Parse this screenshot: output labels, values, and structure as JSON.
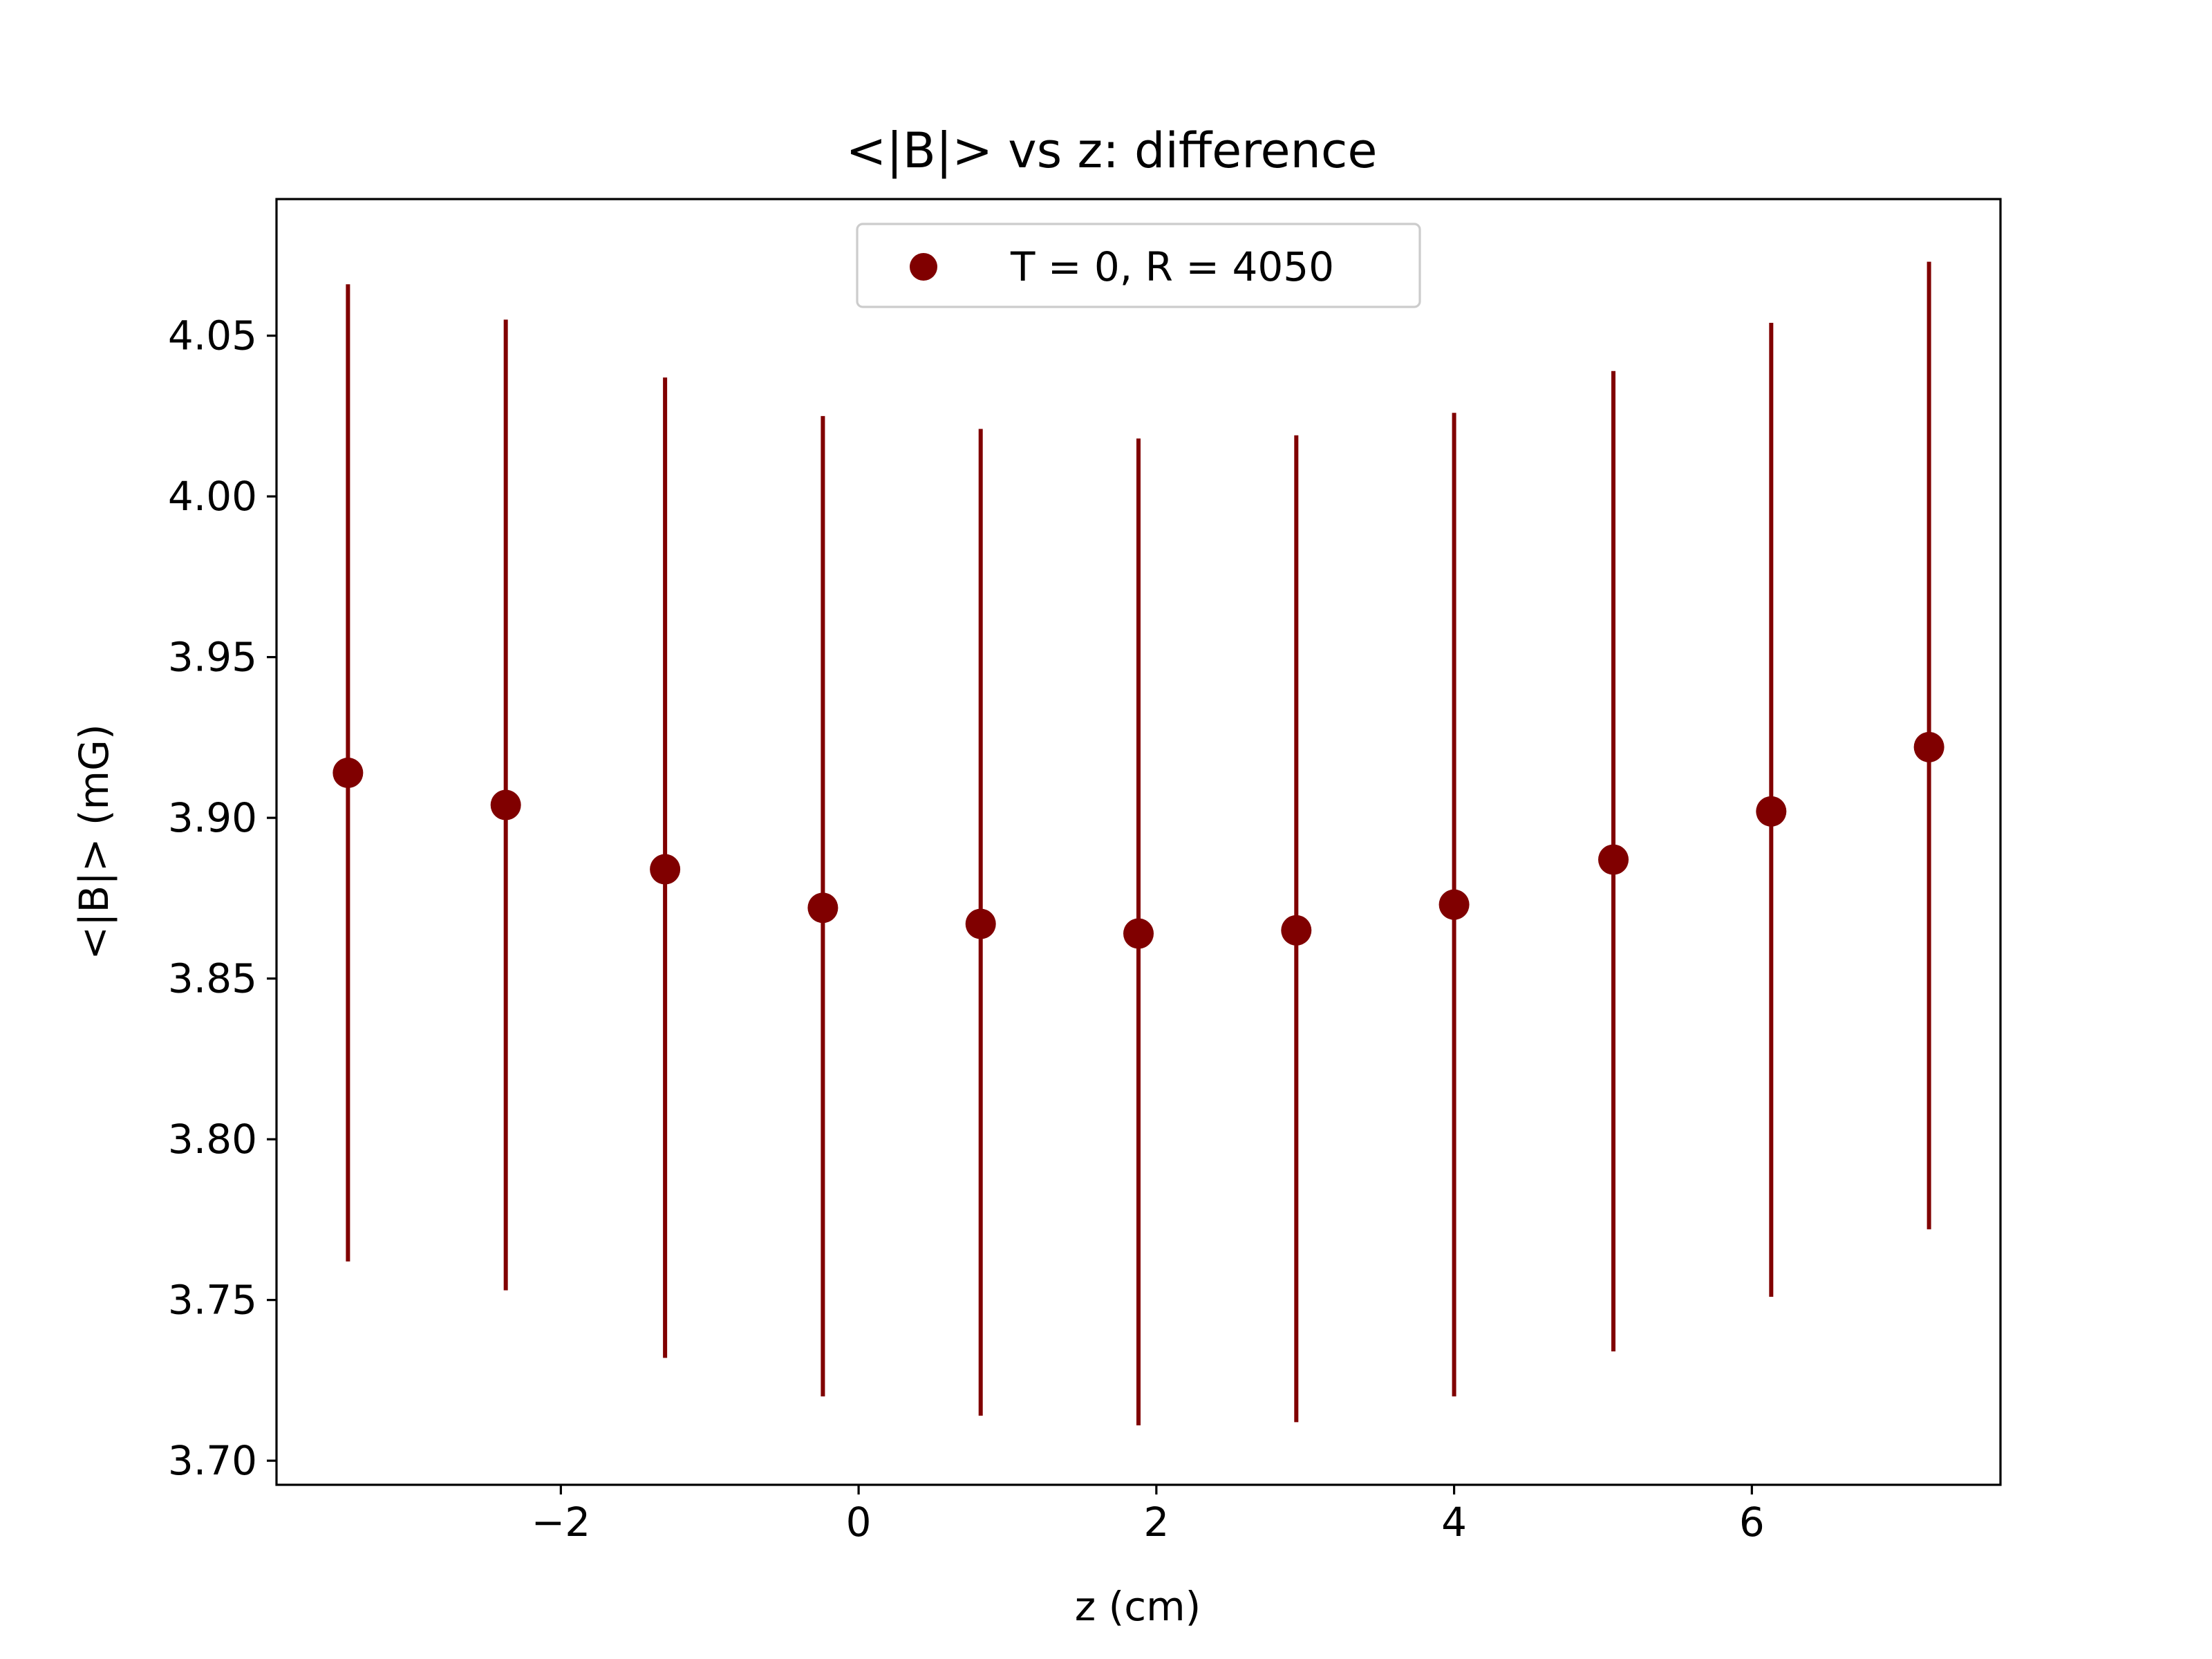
{
  "chart_data": {
    "type": "scatter",
    "title": "<|B|> vs z: difference",
    "xlabel": "z (cm)",
    "ylabel": "<|B|> (mG)",
    "xlim": [
      -3.91,
      7.67
    ],
    "ylim": [
      3.6925,
      4.0925
    ],
    "xticks": [
      -2,
      0,
      2,
      4,
      6
    ],
    "xtick_labels": [
      "−2",
      "0",
      "2",
      "4",
      "6"
    ],
    "yticks": [
      3.7,
      3.75,
      3.8,
      3.85,
      3.9,
      3.95,
      4.0,
      4.05
    ],
    "ytick_labels": [
      "3.70",
      "3.75",
      "3.80",
      "3.85",
      "3.90",
      "3.95",
      "4.00",
      "4.05"
    ],
    "grid": false,
    "legend_position": "upper-center",
    "series": [
      {
        "name": "T = 0, R = 4050",
        "color": "#800000",
        "x": [
          -3.43,
          -2.37,
          -1.3,
          -0.24,
          0.82,
          1.88,
          2.94,
          4.0,
          5.07,
          6.13,
          7.19
        ],
        "y": [
          3.914,
          3.904,
          3.884,
          3.872,
          3.867,
          3.864,
          3.865,
          3.873,
          3.887,
          3.902,
          3.922
        ],
        "yerr_low": [
          3.762,
          3.753,
          3.732,
          3.72,
          3.714,
          3.711,
          3.712,
          3.72,
          3.734,
          3.751,
          3.772
        ],
        "yerr_high": [
          4.066,
          4.055,
          4.037,
          4.025,
          4.021,
          4.018,
          4.019,
          4.026,
          4.039,
          4.054,
          4.073
        ]
      }
    ]
  }
}
